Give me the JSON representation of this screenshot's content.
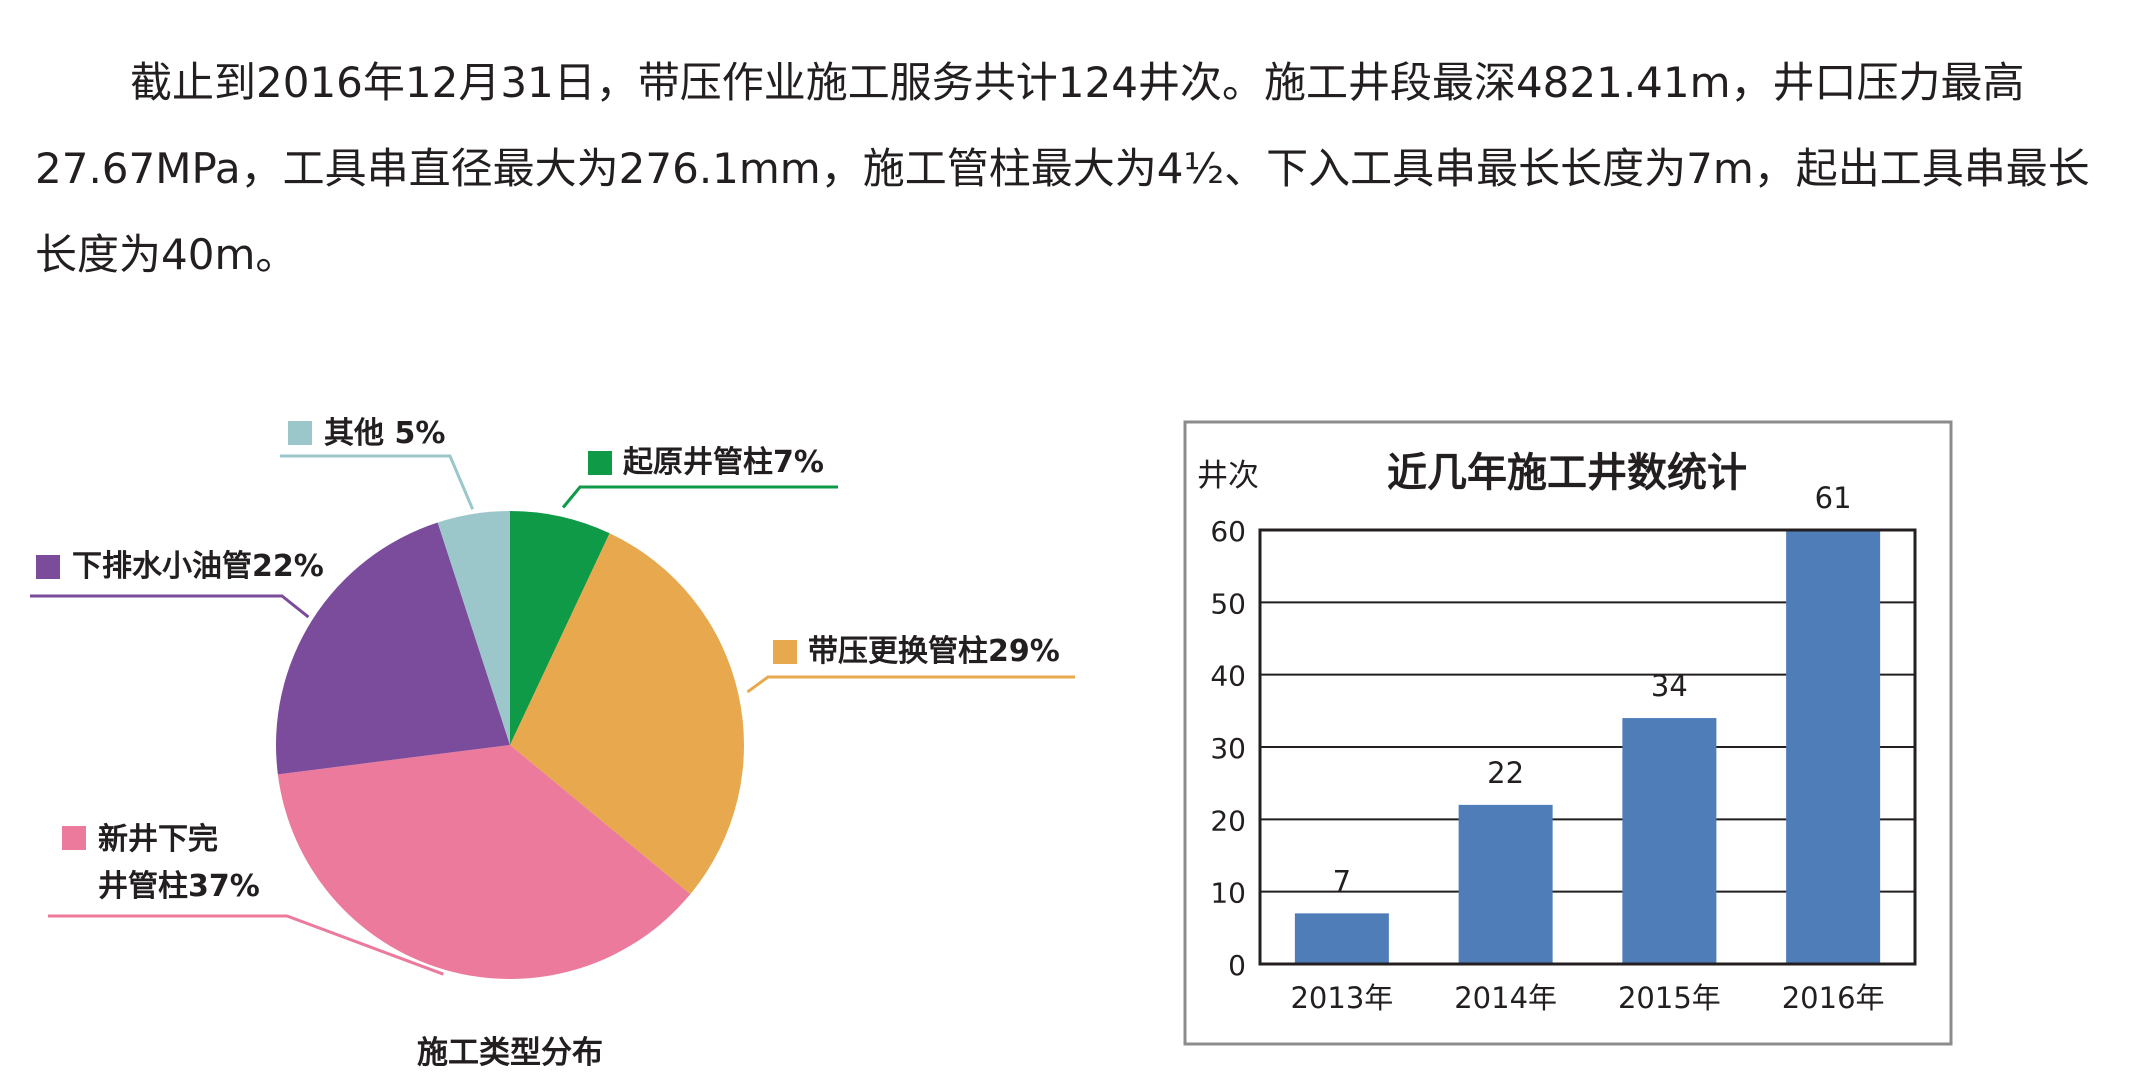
{
  "intro_text": "截止到2016年12月31日，带压作业施工服务共计124井次。施工井段最深4821.41m，井口压力最高27.67MPa，工具串直径最大为276.1mm，施工管柱最大为4½、下入工具串最长长度为7m，起出工具串最长长度为40m。",
  "chart_data": [
    {
      "type": "pie",
      "title": "施工类型分布",
      "slices": [
        {
          "label": "起原井管柱7%",
          "value": 7,
          "color": "#0f9a48"
        },
        {
          "label": "带压更换管柱29%",
          "value": 29,
          "color": "#e8a94e"
        },
        {
          "label": "新井下完井管柱37%",
          "label_lines": [
            "新井下完",
            "井管柱37%"
          ],
          "value": 37,
          "color": "#ec7a9c"
        },
        {
          "label": "下排水小油管22%",
          "value": 22,
          "color": "#7b4c9b"
        },
        {
          "label": "其他 5%",
          "value": 5,
          "color": "#9bc7cb"
        }
      ]
    },
    {
      "type": "bar",
      "title": "近几年施工井数统计",
      "ylabel": "井次",
      "categories": [
        "2013年",
        "2014年",
        "2015年",
        "2016年"
      ],
      "values": [
        7,
        22,
        34,
        61
      ],
      "ylim": [
        0,
        60
      ],
      "yticks": [
        0,
        10,
        20,
        30,
        40,
        50,
        60
      ],
      "grid": true,
      "bar_color": "#4f7db8"
    }
  ]
}
